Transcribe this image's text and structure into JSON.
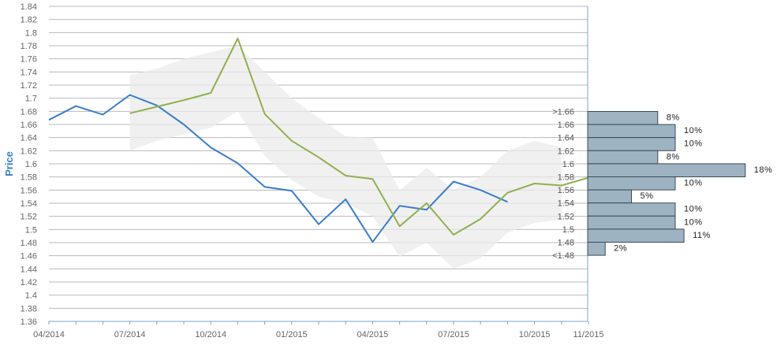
{
  "chart_data": {
    "type": "line",
    "ylabel": "Price",
    "ylim": [
      1.36,
      1.84
    ],
    "y_ticks": [
      "1.36",
      "1.38",
      "1.4",
      "1.42",
      "1.44",
      "1.46",
      "1.48",
      "1.5",
      "1.52",
      "1.54",
      "1.56",
      "1.58",
      "1.6",
      "1.62",
      "1.64",
      "1.66",
      "1.68",
      "1.7",
      "1.72",
      "1.74",
      "1.76",
      "1.78",
      "1.8",
      "1.82",
      "1.84"
    ],
    "x_ticks": [
      "04/2014",
      "07/2014",
      "10/2014",
      "01/2015",
      "04/2015",
      "07/2015",
      "10/2015",
      "11/2015"
    ],
    "grid": true,
    "colors": {
      "actual": "#3a7dc9",
      "forecast": "#8fb04e",
      "band": "#ebebeb",
      "bars": "#9db3c2",
      "bar_border": "#3d4a55"
    },
    "series": [
      {
        "key": "actual",
        "x": [
          "2014-04",
          "2014-05",
          "2014-06",
          "2014-07",
          "2014-08",
          "2014-09",
          "2014-10",
          "2014-11",
          "2014-12",
          "2015-01",
          "2015-02",
          "2015-03",
          "2015-04",
          "2015-05",
          "2015-06",
          "2015-07",
          "2015-08",
          "2015-09"
        ],
        "values": [
          1.667,
          1.688,
          1.675,
          1.705,
          1.689,
          1.66,
          1.625,
          1.601,
          1.565,
          1.559,
          1.508,
          1.546,
          1.481,
          1.536,
          1.53,
          1.573,
          1.56,
          1.542
        ]
      },
      {
        "key": "forecast",
        "x": [
          "2014-07",
          "2014-08",
          "2014-09",
          "2014-10",
          "2014-11",
          "2014-12",
          "2015-01",
          "2015-02",
          "2015-03",
          "2015-04",
          "2015-05",
          "2015-06",
          "2015-07",
          "2015-08",
          "2015-09",
          "2015-10",
          "2015-11",
          "2015-12"
        ],
        "values": [
          1.677,
          1.687,
          1.697,
          1.708,
          1.791,
          1.676,
          1.635,
          1.61,
          1.582,
          1.577,
          1.505,
          1.54,
          1.492,
          1.516,
          1.556,
          1.57,
          1.567,
          1.579
        ]
      }
    ],
    "band": {
      "x": [
        "2014-07",
        "2014-08",
        "2014-09",
        "2014-10",
        "2014-11",
        "2014-12",
        "2015-01",
        "2015-02",
        "2015-03",
        "2015-04",
        "2015-05",
        "2015-06",
        "2015-07",
        "2015-08",
        "2015-09",
        "2015-10",
        "2015-11"
      ],
      "upper": [
        1.735,
        1.745,
        1.76,
        1.77,
        1.78,
        1.74,
        1.7,
        1.67,
        1.642,
        1.64,
        1.56,
        1.594,
        1.56,
        1.58,
        1.62,
        1.635,
        1.625
      ],
      "lower": [
        1.62,
        1.635,
        1.645,
        1.655,
        1.68,
        1.612,
        1.575,
        1.55,
        1.54,
        1.52,
        1.458,
        1.48,
        1.44,
        1.456,
        1.495,
        1.51,
        1.515
      ]
    },
    "distribution": [
      {
        "label": ">1.66",
        "pct": 8,
        "text": "8%"
      },
      {
        "label": "1.66",
        "pct": 10,
        "text": "10%"
      },
      {
        "label": "1.64",
        "pct": 10,
        "text": "10%"
      },
      {
        "label": "1.62",
        "pct": 8,
        "text": "8%"
      },
      {
        "label": "1.6",
        "pct": 18,
        "text": "18%"
      },
      {
        "label": "1.58",
        "pct": 10,
        "text": "10%"
      },
      {
        "label": "1.56",
        "pct": 5,
        "text": "5%"
      },
      {
        "label": "1.54",
        "pct": 10,
        "text": "10%"
      },
      {
        "label": "1.52",
        "pct": 10,
        "text": "10%"
      },
      {
        "label": "1.5",
        "pct": 11,
        "text": "11%"
      },
      {
        "label": "1.48",
        "pct": 2,
        "text": "2%"
      },
      {
        "label": "<1.48",
        "pct": 0,
        "text": ""
      }
    ]
  }
}
